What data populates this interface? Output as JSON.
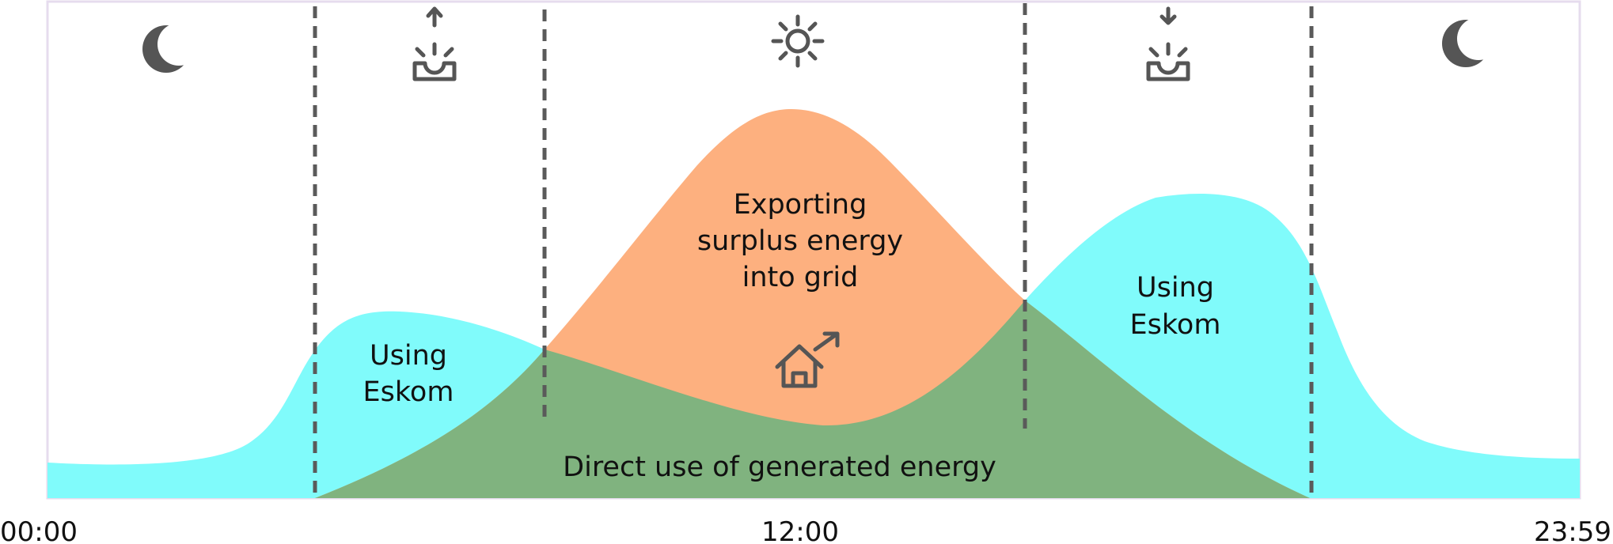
{
  "diagram": {
    "region_labels": {
      "eskom_morning_line1": "Using",
      "eskom_morning_line2": "Eskom",
      "export_line1": "Exporting",
      "export_line2": "surplus energy",
      "export_line3": "into grid",
      "eskom_evening_line1": "Using",
      "eskom_evening_line2": "Eskom",
      "direct_use": "Direct use of generated energy"
    },
    "time_axis": {
      "start": "00:00",
      "middle": "12:00",
      "end": "23:59"
    },
    "period_icons": [
      "moon-icon",
      "sunrise-icon",
      "sun-icon",
      "sunset-icon",
      "moon-icon"
    ],
    "colors": {
      "eskom_usage": "#80fbfb",
      "export_surplus": "#fdb07f",
      "direct_use": "#80b37f",
      "divider": "#5a5a5a",
      "icon": "#555555",
      "frame": "#e6dcee"
    }
  }
}
